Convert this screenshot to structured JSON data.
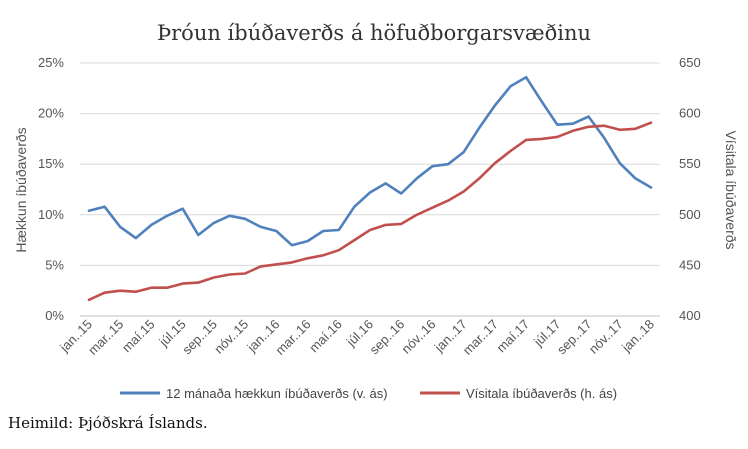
{
  "chart_data": {
    "type": "line",
    "title": "Þróun íbúðaverðs á höfuðborgarsvæðinu",
    "ylabel_left": "Hækkun íbúðaverðs",
    "ylabel_right": "Vísitala íbúðaverðs",
    "y_left_ticks": [
      "0%",
      "5%",
      "10%",
      "15%",
      "20%",
      "25%"
    ],
    "y_left_lim": [
      0,
      25
    ],
    "y_right_ticks": [
      "400",
      "450",
      "500",
      "550",
      "600",
      "650"
    ],
    "y_right_lim": [
      400,
      650
    ],
    "x_tick_labels": [
      "jan..15",
      "mar..15",
      "maí.15",
      "júl.15",
      "sep..15",
      "nóv..15",
      "jan..16",
      "mar..16",
      "maí.16",
      "júl.16",
      "sep..16",
      "nóv..16",
      "jan..17",
      "mar..17",
      "maí.17",
      "júl.17",
      "sep..17",
      "nóv..17",
      "jan..18"
    ],
    "grid": true,
    "legend_position": "bottom",
    "series": [
      {
        "name": "12 mánaða hækkun íbúðaverðs (v. ás)",
        "axis": "left",
        "color": "#4f81bd",
        "values": [
          10.4,
          10.8,
          8.8,
          7.7,
          9.0,
          9.9,
          10.6,
          8.0,
          9.2,
          9.9,
          9.6,
          8.8,
          8.4,
          7.0,
          7.4,
          8.4,
          8.5,
          10.8,
          12.2,
          13.1,
          12.1,
          13.6,
          14.8,
          15.0,
          16.2,
          18.6,
          20.8,
          22.7,
          23.6,
          21.2,
          18.9,
          19.0,
          19.7,
          17.6,
          15.1,
          13.6,
          12.7
        ]
      },
      {
        "name": "Vísitala íbúðaverðs (h. ás)",
        "axis": "right",
        "color": "#c0504d",
        "values": [
          416,
          423,
          425,
          424,
          428,
          428,
          432,
          433,
          438,
          441,
          442,
          449,
          451,
          453,
          457,
          460,
          465,
          475,
          485,
          490,
          491,
          500,
          507,
          514,
          523,
          536,
          551,
          563,
          574,
          575,
          577,
          583,
          587,
          588,
          584,
          585,
          591
        ]
      }
    ]
  },
  "source": "Heimild: Þjóðskrá Íslands."
}
